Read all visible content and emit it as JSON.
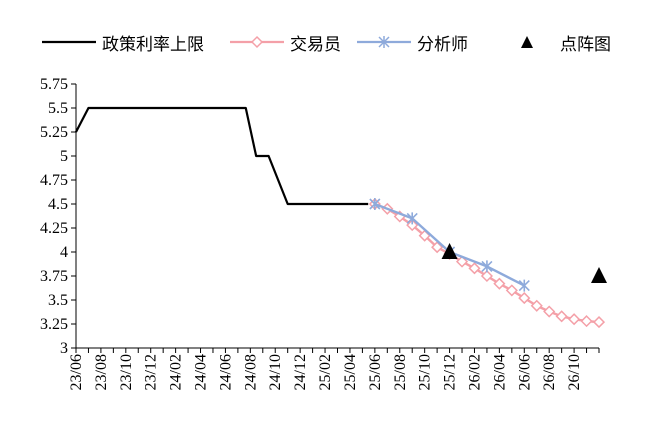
{
  "chart_data": {
    "type": "line",
    "title": "",
    "xlabel": "",
    "ylabel": "",
    "ylim": [
      3,
      5.75
    ],
    "yticks": [
      3,
      3.25,
      3.5,
      3.75,
      4,
      4.25,
      4.5,
      4.75,
      5,
      5.25,
      5.5,
      5.75
    ],
    "ytick_labels": [
      "3",
      "3.25",
      "3.5",
      "3.75",
      "4",
      "4.25",
      "4.5",
      "4.75",
      "5",
      "5.25",
      "5.5",
      "5.75"
    ],
    "x_range": [
      "2023-06",
      "2026-12"
    ],
    "xtick_labels": [
      "23/06",
      "23/08",
      "23/10",
      "23/12",
      "24/02",
      "24/04",
      "24/06",
      "24/08",
      "24/10",
      "24/12",
      "25/02",
      "25/04",
      "25/06",
      "25/08",
      "25/10",
      "25/12",
      "26/02",
      "26/04",
      "26/06",
      "26/08",
      "26/10"
    ],
    "grid": false,
    "legend_position": "top",
    "series": [
      {
        "name": "政策利率上限",
        "style": "line",
        "color": "#000000",
        "x": [
          "2023-06-01",
          "2023-07-01",
          "2023-08-01",
          "2024-07-20",
          "2024-08-15",
          "2024-09-15",
          "2024-11-01",
          "2025-05-15"
        ],
        "y": [
          5.25,
          5.5,
          5.5,
          5.5,
          5.0,
          5.0,
          4.5,
          4.5
        ]
      },
      {
        "name": "交易员",
        "style": "line-diamond",
        "color": "#f4a0a8",
        "x": [
          "2025-06-01",
          "2025-07-01",
          "2025-08-01",
          "2025-09-01",
          "2025-10-01",
          "2025-11-01",
          "2025-12-01",
          "2026-01-01",
          "2026-02-01",
          "2026-03-01",
          "2026-04-01",
          "2026-05-01",
          "2026-06-01",
          "2026-07-01",
          "2026-08-01",
          "2026-09-01",
          "2026-10-01",
          "2026-11-01",
          "2026-12-01"
        ],
        "y": [
          4.5,
          4.45,
          4.37,
          4.28,
          4.17,
          4.05,
          3.98,
          3.9,
          3.83,
          3.75,
          3.67,
          3.6,
          3.52,
          3.44,
          3.38,
          3.33,
          3.3,
          3.28,
          3.27
        ]
      },
      {
        "name": "分析师",
        "style": "line-x",
        "color": "#8eaadb",
        "x": [
          "2025-06-01",
          "2025-09-01",
          "2025-12-01",
          "2026-03-01",
          "2026-06-01"
        ],
        "y": [
          4.5,
          4.35,
          4.0,
          3.85,
          3.65
        ]
      },
      {
        "name": "点阵图",
        "style": "triangle",
        "color": "#000000",
        "x": [
          "2025-12-01",
          "2026-12-01"
        ],
        "y": [
          4.0,
          3.75
        ]
      }
    ]
  }
}
